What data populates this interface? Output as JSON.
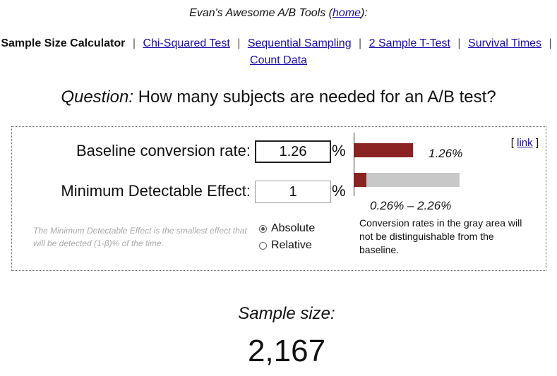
{
  "header": {
    "prefix": "Evan's Awesome A/B Tools (",
    "home_link": "home",
    "suffix": "):"
  },
  "nav": {
    "current": "Sample Size Calculator",
    "separator": "|",
    "links": [
      "Chi-Squared Test",
      "Sequential Sampling",
      "2 Sample T-Test",
      "Survival Times",
      "Count Data"
    ]
  },
  "question": {
    "label": "Question:",
    "text": "How many subjects are needed for an A/B test?"
  },
  "calculator": {
    "baseline_label": "Baseline conversion rate:",
    "baseline_value": "1.26",
    "mde_label": "Minimum Detectable Effect:",
    "mde_value": "1",
    "percent_sign": "%",
    "note": "The Minimum Detectable Effect is the smallest effect that will be detected (1-β)% of the time.",
    "options": [
      "Absolute",
      "Relative"
    ],
    "selected_option": "Absolute",
    "link_open": "[ ",
    "link_text": "link",
    "link_close": " ]"
  },
  "visualization": {
    "baseline_label": "1.26%",
    "range_label": "0.26% – 2.26%",
    "explanation": "Conversion rates in the gray area will not be distinguishable from the baseline.",
    "colors": {
      "bar": "#8b2323",
      "gray": "#c8c8c8"
    },
    "baseline_rate": 1.26,
    "range_low": 0.26,
    "range_high": 2.26
  },
  "result": {
    "label": "Sample size:",
    "value": "2,167"
  }
}
